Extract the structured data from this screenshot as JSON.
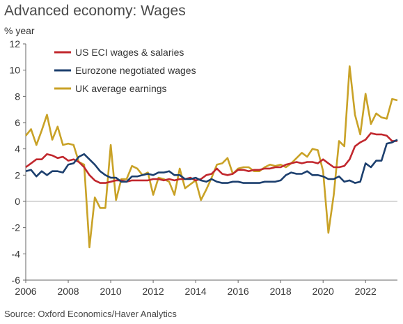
{
  "title": "Advanced economy: Wages",
  "unit_label": "% year",
  "source": "Source: Oxford Economics/Haver Analytics",
  "chart_data": {
    "type": "line",
    "ylim": [
      -6,
      12
    ],
    "xlim": [
      2006,
      2023.5
    ],
    "y_ticks": [
      12,
      10,
      8,
      6,
      4,
      2,
      0,
      -2,
      -4,
      -6
    ],
    "x_ticks": [
      2006,
      2008,
      2010,
      2012,
      2014,
      2016,
      2018,
      2020,
      2022
    ],
    "grid": false,
    "legend_position": "top-left",
    "series": [
      {
        "name": "US ECI wages & salaries",
        "color": "#c1272d",
        "points": [
          [
            2006.0,
            2.6
          ],
          [
            2006.25,
            2.9
          ],
          [
            2006.5,
            3.2
          ],
          [
            2006.75,
            3.2
          ],
          [
            2007.0,
            3.6
          ],
          [
            2007.25,
            3.5
          ],
          [
            2007.5,
            3.3
          ],
          [
            2007.75,
            3.4
          ],
          [
            2008.0,
            3.1
          ],
          [
            2008.25,
            3.2
          ],
          [
            2008.5,
            3.0
          ],
          [
            2008.75,
            2.6
          ],
          [
            2009.0,
            2.0
          ],
          [
            2009.25,
            1.6
          ],
          [
            2009.5,
            1.4
          ],
          [
            2009.75,
            1.4
          ],
          [
            2010.0,
            1.5
          ],
          [
            2010.25,
            1.6
          ],
          [
            2010.5,
            1.6
          ],
          [
            2010.75,
            1.5
          ],
          [
            2011.0,
            1.6
          ],
          [
            2011.25,
            1.6
          ],
          [
            2011.5,
            1.6
          ],
          [
            2011.75,
            1.6
          ],
          [
            2012.0,
            1.7
          ],
          [
            2012.25,
            1.7
          ],
          [
            2012.5,
            1.6
          ],
          [
            2012.75,
            1.7
          ],
          [
            2013.0,
            1.6
          ],
          [
            2013.25,
            1.7
          ],
          [
            2013.5,
            1.7
          ],
          [
            2013.75,
            1.8
          ],
          [
            2014.0,
            1.6
          ],
          [
            2014.25,
            1.7
          ],
          [
            2014.5,
            2.0
          ],
          [
            2014.75,
            2.1
          ],
          [
            2015.0,
            2.5
          ],
          [
            2015.25,
            2.1
          ],
          [
            2015.5,
            2.0
          ],
          [
            2015.75,
            2.1
          ],
          [
            2016.0,
            2.4
          ],
          [
            2016.25,
            2.4
          ],
          [
            2016.5,
            2.3
          ],
          [
            2016.75,
            2.4
          ],
          [
            2017.0,
            2.4
          ],
          [
            2017.25,
            2.5
          ],
          [
            2017.5,
            2.5
          ],
          [
            2017.75,
            2.6
          ],
          [
            2018.0,
            2.6
          ],
          [
            2018.25,
            2.8
          ],
          [
            2018.5,
            2.9
          ],
          [
            2018.75,
            3.0
          ],
          [
            2019.0,
            2.9
          ],
          [
            2019.25,
            3.0
          ],
          [
            2019.5,
            3.0
          ],
          [
            2019.75,
            2.9
          ],
          [
            2020.0,
            3.2
          ],
          [
            2020.25,
            2.9
          ],
          [
            2020.5,
            2.6
          ],
          [
            2020.75,
            2.6
          ],
          [
            2021.0,
            2.7
          ],
          [
            2021.25,
            3.2
          ],
          [
            2021.5,
            4.2
          ],
          [
            2021.75,
            4.5
          ],
          [
            2022.0,
            4.7
          ],
          [
            2022.25,
            5.2
          ],
          [
            2022.5,
            5.1
          ],
          [
            2022.75,
            5.1
          ],
          [
            2023.0,
            5.0
          ],
          [
            2023.25,
            4.6
          ],
          [
            2023.5,
            4.6
          ]
        ]
      },
      {
        "name": "Eurozone negotiated wages",
        "color": "#1c3f6e",
        "points": [
          [
            2006.0,
            2.3
          ],
          [
            2006.25,
            2.4
          ],
          [
            2006.5,
            1.9
          ],
          [
            2006.75,
            2.3
          ],
          [
            2007.0,
            2.0
          ],
          [
            2007.25,
            2.3
          ],
          [
            2007.5,
            2.3
          ],
          [
            2007.75,
            2.2
          ],
          [
            2008.0,
            2.8
          ],
          [
            2008.25,
            2.9
          ],
          [
            2008.5,
            3.4
          ],
          [
            2008.75,
            3.6
          ],
          [
            2009.0,
            3.2
          ],
          [
            2009.25,
            2.8
          ],
          [
            2009.5,
            2.3
          ],
          [
            2009.75,
            2.0
          ],
          [
            2010.0,
            1.8
          ],
          [
            2010.25,
            1.8
          ],
          [
            2010.5,
            1.5
          ],
          [
            2010.75,
            1.5
          ],
          [
            2011.0,
            1.9
          ],
          [
            2011.25,
            1.9
          ],
          [
            2011.5,
            2.0
          ],
          [
            2011.75,
            2.1
          ],
          [
            2012.0,
            2.0
          ],
          [
            2012.25,
            2.2
          ],
          [
            2012.5,
            2.2
          ],
          [
            2012.75,
            2.3
          ],
          [
            2013.0,
            2.0
          ],
          [
            2013.25,
            2.0
          ],
          [
            2013.5,
            1.7
          ],
          [
            2013.75,
            1.7
          ],
          [
            2014.0,
            1.8
          ],
          [
            2014.25,
            1.6
          ],
          [
            2014.5,
            1.5
          ],
          [
            2014.75,
            1.7
          ],
          [
            2015.0,
            1.5
          ],
          [
            2015.25,
            1.4
          ],
          [
            2015.5,
            1.4
          ],
          [
            2015.75,
            1.5
          ],
          [
            2016.0,
            1.5
          ],
          [
            2016.25,
            1.4
          ],
          [
            2016.5,
            1.4
          ],
          [
            2016.75,
            1.4
          ],
          [
            2017.0,
            1.4
          ],
          [
            2017.25,
            1.5
          ],
          [
            2017.5,
            1.5
          ],
          [
            2017.75,
            1.5
          ],
          [
            2018.0,
            1.6
          ],
          [
            2018.25,
            2.0
          ],
          [
            2018.5,
            2.2
          ],
          [
            2018.75,
            2.1
          ],
          [
            2019.0,
            2.1
          ],
          [
            2019.25,
            2.3
          ],
          [
            2019.5,
            2.0
          ],
          [
            2019.75,
            2.0
          ],
          [
            2020.0,
            1.9
          ],
          [
            2020.25,
            1.7
          ],
          [
            2020.5,
            1.7
          ],
          [
            2020.75,
            1.9
          ],
          [
            2021.0,
            1.5
          ],
          [
            2021.25,
            1.6
          ],
          [
            2021.5,
            1.4
          ],
          [
            2021.75,
            1.5
          ],
          [
            2022.0,
            2.9
          ],
          [
            2022.25,
            2.6
          ],
          [
            2022.5,
            3.1
          ],
          [
            2022.75,
            3.1
          ],
          [
            2023.0,
            4.4
          ],
          [
            2023.25,
            4.5
          ],
          [
            2023.5,
            4.7
          ]
        ]
      },
      {
        "name": "UK average earnings",
        "color": "#c9a227",
        "points": [
          [
            2006.0,
            5.0
          ],
          [
            2006.25,
            5.5
          ],
          [
            2006.5,
            4.3
          ],
          [
            2006.75,
            5.4
          ],
          [
            2007.0,
            6.6
          ],
          [
            2007.25,
            4.7
          ],
          [
            2007.5,
            5.7
          ],
          [
            2007.75,
            4.3
          ],
          [
            2008.0,
            4.4
          ],
          [
            2008.25,
            4.3
          ],
          [
            2008.5,
            3.0
          ],
          [
            2008.75,
            2.8
          ],
          [
            2009.0,
            -3.5
          ],
          [
            2009.25,
            0.3
          ],
          [
            2009.5,
            -0.5
          ],
          [
            2009.75,
            -0.5
          ],
          [
            2010.0,
            4.3
          ],
          [
            2010.25,
            0.1
          ],
          [
            2010.5,
            1.7
          ],
          [
            2010.75,
            1.7
          ],
          [
            2011.0,
            2.7
          ],
          [
            2011.25,
            2.5
          ],
          [
            2011.5,
            2.0
          ],
          [
            2011.75,
            2.2
          ],
          [
            2012.0,
            0.5
          ],
          [
            2012.25,
            1.8
          ],
          [
            2012.5,
            1.7
          ],
          [
            2012.75,
            1.5
          ],
          [
            2013.0,
            0.5
          ],
          [
            2013.25,
            2.5
          ],
          [
            2013.5,
            1.0
          ],
          [
            2013.75,
            1.3
          ],
          [
            2014.0,
            1.6
          ],
          [
            2014.25,
            0.1
          ],
          [
            2014.5,
            0.9
          ],
          [
            2014.75,
            1.8
          ],
          [
            2015.0,
            2.8
          ],
          [
            2015.25,
            2.9
          ],
          [
            2015.5,
            3.3
          ],
          [
            2015.75,
            2.1
          ],
          [
            2016.0,
            2.5
          ],
          [
            2016.25,
            2.6
          ],
          [
            2016.5,
            2.6
          ],
          [
            2016.75,
            2.3
          ],
          [
            2017.0,
            2.3
          ],
          [
            2017.25,
            2.6
          ],
          [
            2017.5,
            2.8
          ],
          [
            2017.75,
            2.7
          ],
          [
            2018.0,
            2.8
          ],
          [
            2018.25,
            2.6
          ],
          [
            2018.5,
            2.9
          ],
          [
            2018.75,
            3.3
          ],
          [
            2019.0,
            3.7
          ],
          [
            2019.25,
            3.4
          ],
          [
            2019.5,
            4.0
          ],
          [
            2019.75,
            3.9
          ],
          [
            2020.0,
            2.3
          ],
          [
            2020.25,
            -2.4
          ],
          [
            2020.5,
            0.5
          ],
          [
            2020.75,
            4.6
          ],
          [
            2021.0,
            4.2
          ],
          [
            2021.25,
            10.3
          ],
          [
            2021.5,
            6.6
          ],
          [
            2021.75,
            5.1
          ],
          [
            2022.0,
            8.2
          ],
          [
            2022.25,
            5.9
          ],
          [
            2022.5,
            6.7
          ],
          [
            2022.75,
            6.4
          ],
          [
            2023.0,
            6.3
          ],
          [
            2023.25,
            7.8
          ],
          [
            2023.5,
            7.7
          ]
        ]
      }
    ]
  }
}
